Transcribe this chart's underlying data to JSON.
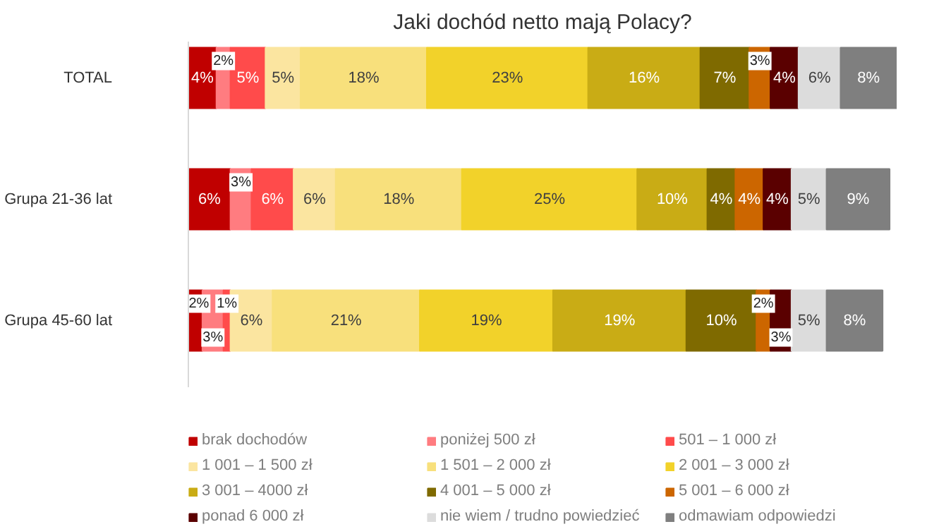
{
  "chart_data": {
    "type": "bar",
    "orientation": "horizontal",
    "stacked": true,
    "title": "Jaki dochód netto mają Polacy?",
    "categories": [
      "TOTAL",
      "Grupa 21-36 lat",
      "Grupa 45-60 lat"
    ],
    "legend": "bottom",
    "tick_labels": "y",
    "series": [
      {
        "name": "brak dochodów",
        "color": "#c00000",
        "values": [
          4,
          6,
          2
        ],
        "value_labels": [
          "4%",
          "6%",
          "2%"
        ]
      },
      {
        "name": "poniżej 500 zł",
        "color": "#ff7c80",
        "values": [
          2,
          3,
          3
        ],
        "value_labels": [
          "2%",
          "3%",
          "3%"
        ]
      },
      {
        "name": "501 – 1 000 zł",
        "color": "#ff4b4b",
        "values": [
          5,
          6,
          1
        ],
        "value_labels": [
          "5%",
          "6%",
          "1%"
        ]
      },
      {
        "name": "1 001 – 1 500 zł",
        "color": "#fbe5a0",
        "values": [
          5,
          6,
          6
        ],
        "value_labels": [
          "5%",
          "6%",
          "6%"
        ]
      },
      {
        "name": "1 501 – 2 000 zł",
        "color": "#f8e07c",
        "values": [
          18,
          18,
          21
        ],
        "value_labels": [
          "18%",
          "18%",
          "21%"
        ]
      },
      {
        "name": "2 001 – 3 000 zł",
        "color": "#f2d22a",
        "values": [
          23,
          25,
          19
        ],
        "value_labels": [
          "23%",
          "25%",
          "19%"
        ]
      },
      {
        "name": "3 001 – 4000 zł",
        "color": "#c9ac15",
        "values": [
          16,
          10,
          19
        ],
        "value_labels": [
          "16%",
          "10%",
          "19%"
        ]
      },
      {
        "name": "4 001 – 5 000 zł",
        "color": "#7f6a00",
        "values": [
          7,
          4,
          10
        ],
        "value_labels": [
          "7%",
          "4%",
          "10%"
        ]
      },
      {
        "name": "5 001 – 6 000 zł",
        "color": "#cc6600",
        "values": [
          3,
          4,
          2
        ],
        "value_labels": [
          "3%",
          "4%",
          "2%"
        ]
      },
      {
        "name": "ponad 6 000 zł",
        "color": "#5a0000",
        "values": [
          4,
          4,
          3
        ],
        "value_labels": [
          "4%",
          "4%",
          "3%"
        ]
      },
      {
        "name": "nie wiem / trudno powiedzieć",
        "color": "#dcdcdc",
        "values": [
          6,
          5,
          5
        ],
        "value_labels": [
          "6%",
          "5%",
          "5%"
        ]
      },
      {
        "name": "odmawiam odpowiedzi",
        "color": "#7f7f7f",
        "values": [
          8,
          9,
          8
        ],
        "value_labels": [
          "8%",
          "9%",
          "8%"
        ]
      }
    ]
  }
}
